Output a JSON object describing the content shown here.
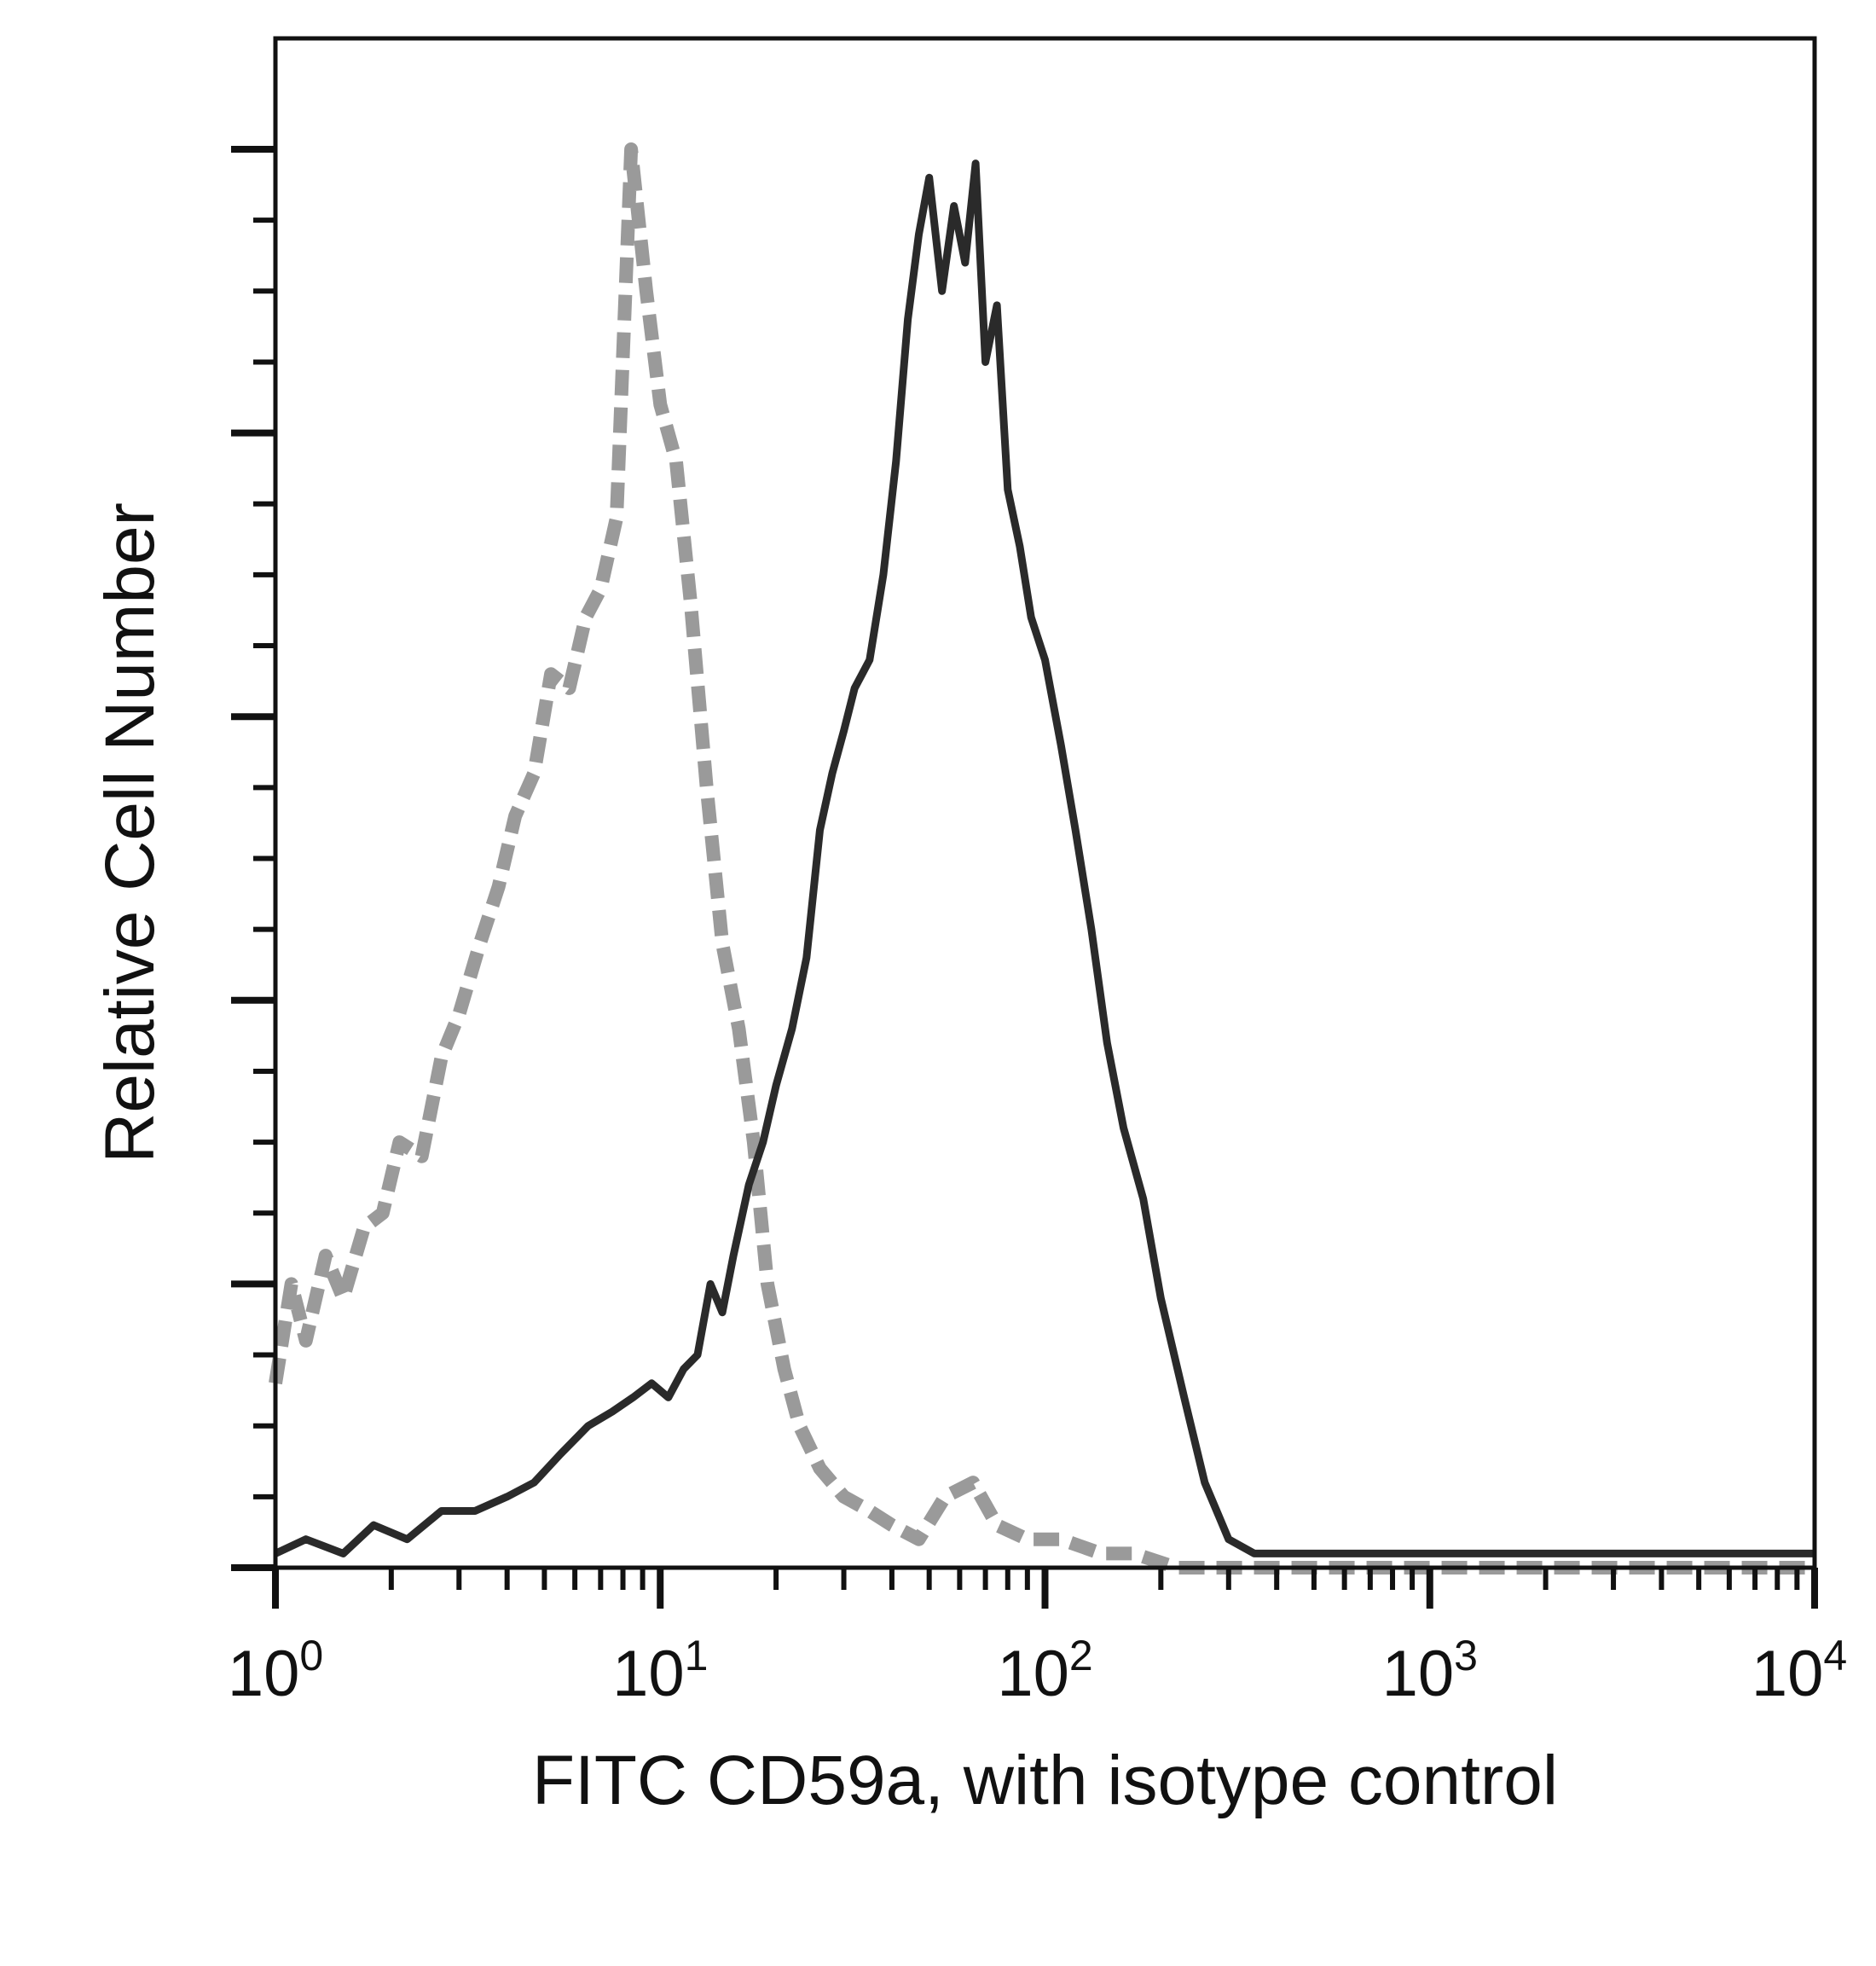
{
  "chart_data": {
    "type": "area",
    "title": "",
    "xlabel": "FITC CD59a, with isotype control",
    "ylabel": "Relative Cell Number",
    "x_scale": "log",
    "xlim": [
      1,
      10000
    ],
    "ylim": [
      0,
      100
    ],
    "x_ticks": [
      {
        "base": "10",
        "exp": "0",
        "value": 1
      },
      {
        "base": "10",
        "exp": "1",
        "value": 10
      },
      {
        "base": "10",
        "exp": "2",
        "value": 100
      },
      {
        "base": "10",
        "exp": "3",
        "value": 1000
      },
      {
        "base": "10",
        "exp": "4",
        "value": 10000
      }
    ],
    "y_tick_labels": [],
    "grid": false,
    "legend": "none",
    "series": [
      {
        "style": "dashed",
        "color": "#9a9a9a",
        "x": [
          1.0,
          1.1,
          1.2,
          1.35,
          1.5,
          1.7,
          1.9,
          2.1,
          2.4,
          2.7,
          3.0,
          3.4,
          3.8,
          4.2,
          4.7,
          5.2,
          5.8,
          6.4,
          7.0,
          7.7,
          8.4,
          9.2,
          10.0,
          11.0,
          12.0,
          13.2,
          14.5,
          16.0,
          17.5,
          19.0,
          21.0,
          23.0,
          26.0,
          30.0,
          35.0,
          40.0,
          47.0,
          55.0,
          65.0,
          75.0,
          90.0,
          110.0,
          140.0,
          170.0,
          220.0,
          300.0,
          500.0,
          1000.0,
          3000.0,
          10000.0
        ],
        "y": [
          13,
          20,
          16,
          22,
          19,
          24,
          25,
          30,
          29,
          36,
          39,
          44,
          48,
          53,
          56,
          63,
          62,
          67,
          69,
          74,
          100,
          90,
          82,
          78,
          68,
          55,
          44,
          38,
          30,
          20,
          14,
          10,
          7,
          5,
          4,
          3,
          2,
          5,
          6,
          3,
          2,
          2,
          1,
          1,
          0,
          0,
          0,
          0,
          0,
          0
        ]
      },
      {
        "style": "solid",
        "color": "#2a2a2a",
        "x": [
          1.0,
          1.2,
          1.5,
          1.8,
          2.2,
          2.7,
          3.3,
          4.0,
          4.7,
          5.5,
          6.5,
          7.5,
          8.5,
          9.5,
          10.5,
          11.5,
          12.5,
          13.5,
          14.5,
          15.5,
          17.0,
          18.5,
          20.0,
          22.0,
          24.0,
          26.0,
          28.0,
          30.0,
          32.0,
          35.0,
          38.0,
          41.0,
          44.0,
          47.0,
          50.0,
          54.0,
          58.0,
          62.0,
          66.0,
          70.0,
          75.0,
          80.0,
          86.0,
          92.0,
          100.0,
          110.0,
          120.0,
          132.0,
          145.0,
          160.0,
          180.0,
          200.0,
          230.0,
          260.0,
          300.0,
          350.0,
          500.0,
          1000.0,
          3000.0,
          10000.0
        ],
        "y": [
          1,
          2,
          1,
          3,
          2,
          4,
          4,
          5,
          6,
          8,
          10,
          11,
          12,
          13,
          12,
          14,
          15,
          20,
          18,
          22,
          27,
          30,
          34,
          38,
          43,
          52,
          56,
          59,
          62,
          64,
          70,
          78,
          88,
          94,
          98,
          90,
          96,
          92,
          99,
          85,
          89,
          76,
          72,
          67,
          64,
          58,
          52,
          45,
          37,
          31,
          26,
          19,
          12,
          6,
          2,
          1,
          1,
          1,
          1,
          1
        ]
      }
    ]
  }
}
